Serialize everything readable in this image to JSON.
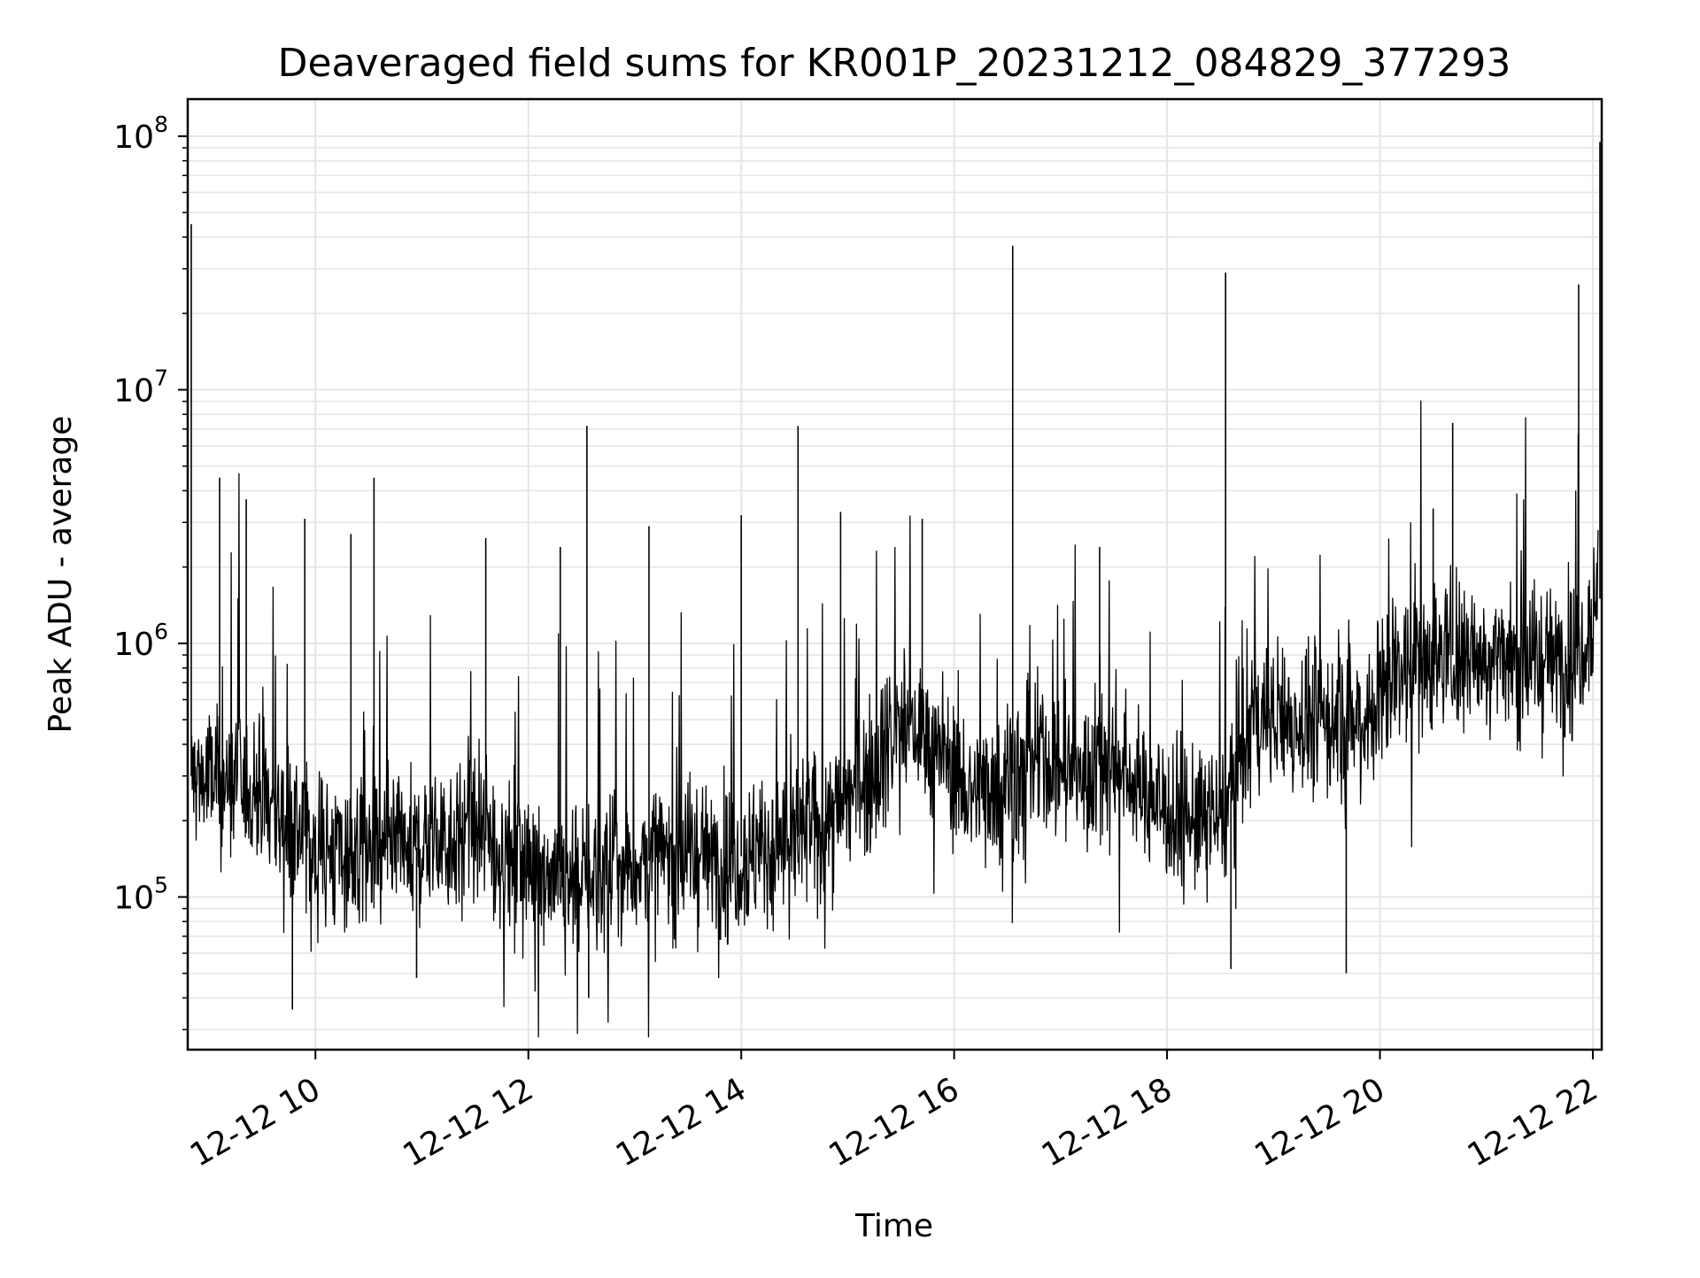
{
  "chart_data": {
    "type": "line",
    "title": "Deaveraged field sums for KR001P_20231212_084829_377293",
    "xlabel": "Time",
    "ylabel": "Peak ADU - average",
    "y_scale": "log",
    "ylim": [
      25000,
      140000000
    ],
    "xlim": [
      "2023-12-12 08:48",
      "2023-12-12 22:05"
    ],
    "grid": true,
    "line_color": "#000000",
    "grid_color": "#e6e6e6",
    "x_ticks": [
      {
        "value": "2023-12-12 10:00",
        "label": "12-12 10"
      },
      {
        "value": "2023-12-12 12:00",
        "label": "12-12 12"
      },
      {
        "value": "2023-12-12 14:00",
        "label": "12-12 14"
      },
      {
        "value": "2023-12-12 16:00",
        "label": "12-12 16"
      },
      {
        "value": "2023-12-12 18:00",
        "label": "12-12 18"
      },
      {
        "value": "2023-12-12 20:00",
        "label": "12-12 20"
      },
      {
        "value": "2023-12-12 22:00",
        "label": "12-12 22"
      }
    ],
    "y_ticks": [
      {
        "value": 100000,
        "base": "10",
        "exp": "5"
      },
      {
        "value": 1000000,
        "base": "10",
        "exp": "6"
      },
      {
        "value": 10000000,
        "base": "10",
        "exp": "7"
      },
      {
        "value": 100000000,
        "base": "10",
        "exp": "8"
      }
    ],
    "series": [
      {
        "x": [
          "2023-12-12 08:50",
          "2023-12-12 09:10",
          "2023-12-12 09:30",
          "2023-12-12 09:50",
          "2023-12-12 10:10",
          "2023-12-12 10:30",
          "2023-12-12 10:50",
          "2023-12-12 11:10",
          "2023-12-12 11:30",
          "2023-12-12 11:50",
          "2023-12-12 12:10",
          "2023-12-12 12:30",
          "2023-12-12 12:50",
          "2023-12-12 13:10",
          "2023-12-12 13:30",
          "2023-12-12 13:50",
          "2023-12-12 14:10",
          "2023-12-12 14:30",
          "2023-12-12 14:50",
          "2023-12-12 15:10",
          "2023-12-12 15:30",
          "2023-12-12 15:50",
          "2023-12-12 16:10",
          "2023-12-12 16:30",
          "2023-12-12 16:50",
          "2023-12-12 17:10",
          "2023-12-12 17:30",
          "2023-12-12 17:50",
          "2023-12-12 18:10",
          "2023-12-12 18:30",
          "2023-12-12 18:50",
          "2023-12-12 19:10",
          "2023-12-12 19:30",
          "2023-12-12 19:50",
          "2023-12-12 20:10",
          "2023-12-12 20:30",
          "2023-12-12 20:50",
          "2023-12-12 21:10",
          "2023-12-12 21:30",
          "2023-12-12 21:50",
          "2023-12-12 22:03"
        ],
        "y": [
          300000,
          280000,
          250000,
          180000,
          150000,
          140000,
          150000,
          170000,
          180000,
          140000,
          130000,
          120000,
          130000,
          140000,
          150000,
          140000,
          150000,
          170000,
          200000,
          300000,
          500000,
          400000,
          250000,
          300000,
          350000,
          300000,
          350000,
          250000,
          200000,
          200000,
          500000,
          500000,
          500000,
          500000,
          800000,
          900000,
          900000,
          900000,
          850000,
          900000,
          1500000
        ]
      }
    ],
    "spikes": [
      {
        "x": "2023-12-12 08:50",
        "y": 45000000
      },
      {
        "x": "2023-12-12 09:06",
        "y": 4500000
      },
      {
        "x": "2023-12-12 09:21",
        "y": 3700000
      },
      {
        "x": "2023-12-12 09:47",
        "y": 36000
      },
      {
        "x": "2023-12-12 09:54",
        "y": 3100000
      },
      {
        "x": "2023-12-12 10:20",
        "y": 2700000
      },
      {
        "x": "2023-12-12 10:33",
        "y": 4500000
      },
      {
        "x": "2023-12-12 10:57",
        "y": 48000
      },
      {
        "x": "2023-12-12 11:36",
        "y": 2600000
      },
      {
        "x": "2023-12-12 12:18",
        "y": 2400000
      },
      {
        "x": "2023-12-12 12:33",
        "y": 7200000
      },
      {
        "x": "2023-12-12 12:34",
        "y": 40000
      },
      {
        "x": "2023-12-12 13:08",
        "y": 2900000
      },
      {
        "x": "2023-12-12 14:00",
        "y": 3200000
      },
      {
        "x": "2023-12-12 14:32",
        "y": 7200000
      },
      {
        "x": "2023-12-12 14:56",
        "y": 3300000
      },
      {
        "x": "2023-12-12 15:42",
        "y": 3100000
      },
      {
        "x": "2023-12-12 16:33",
        "y": 37000000
      },
      {
        "x": "2023-12-12 17:22",
        "y": 2400000
      },
      {
        "x": "2023-12-12 18:33",
        "y": 29000000
      },
      {
        "x": "2023-12-12 18:36",
        "y": 52000
      },
      {
        "x": "2023-12-12 19:41",
        "y": 50000
      },
      {
        "x": "2023-12-12 20:30",
        "y": 3400000
      },
      {
        "x": "2023-12-12 20:41",
        "y": 7400000
      },
      {
        "x": "2023-12-12 21:52",
        "y": 26000000
      },
      {
        "x": "2023-12-12 22:04",
        "y": 95000000
      }
    ]
  }
}
